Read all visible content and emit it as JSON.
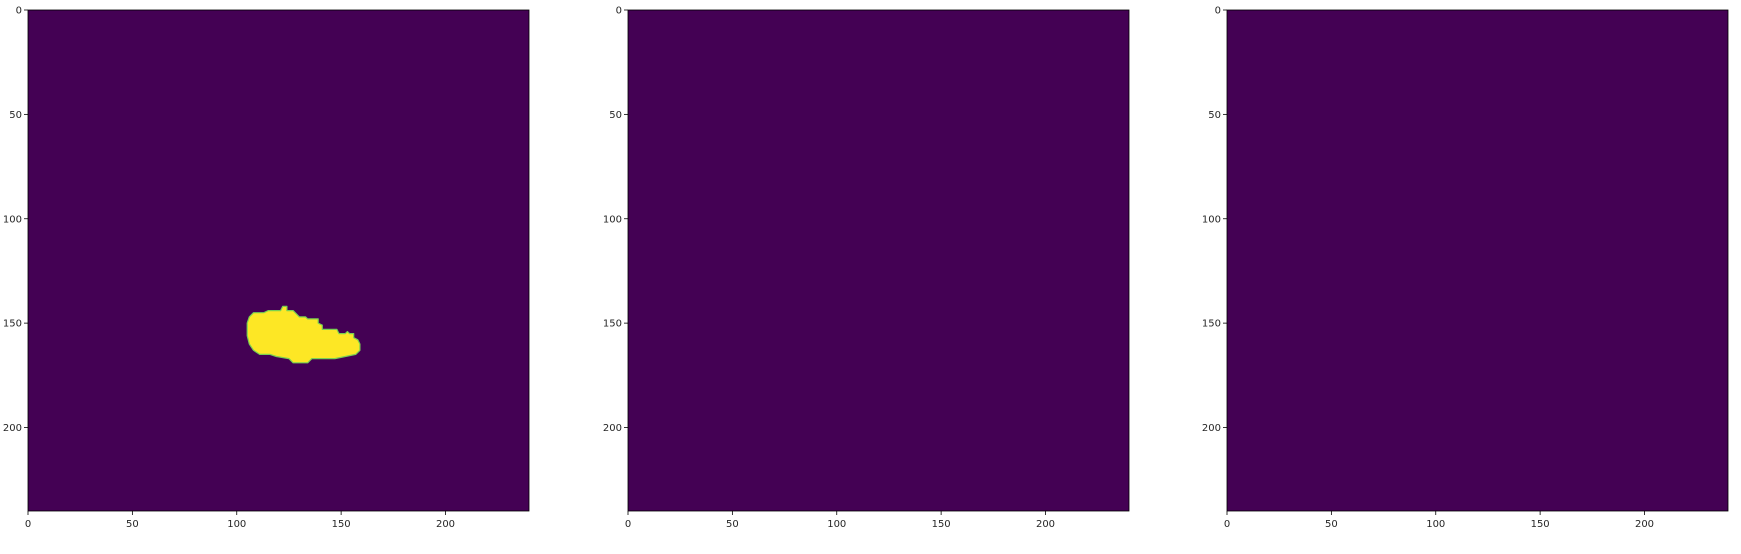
{
  "figure": {
    "background": "#ffffff",
    "colors": {
      "background_value": "#440154",
      "mask_value": "#fde725",
      "mask_edge": "#7ad151",
      "axis": "#000000",
      "text": "#262626"
    }
  },
  "chart_data": [
    {
      "type": "heatmap",
      "panel": 1,
      "image_size": [
        240,
        240
      ],
      "xlim": [
        0,
        240
      ],
      "ylim": [
        240,
        0
      ],
      "x_ticks": [
        0,
        50,
        100,
        150,
        200
      ],
      "y_ticks": [
        0,
        50,
        100,
        150,
        200
      ],
      "x_tick_labels": [
        "0",
        "50",
        "100",
        "150",
        "200"
      ],
      "y_tick_labels": [
        "0",
        "50",
        "100",
        "150",
        "200"
      ],
      "colormap": "viridis",
      "values": "binary mask (0 = background, 1 = region)",
      "mask_region_outline": [
        [
          106,
          147
        ],
        [
          108,
          145
        ],
        [
          113,
          145
        ],
        [
          115,
          144
        ],
        [
          121,
          144
        ],
        [
          122,
          142
        ],
        [
          124,
          142
        ],
        [
          124,
          144
        ],
        [
          127,
          144
        ],
        [
          130,
          147
        ],
        [
          133,
          147
        ],
        [
          134,
          148
        ],
        [
          139,
          148
        ],
        [
          139,
          150
        ],
        [
          141,
          151
        ],
        [
          141,
          153
        ],
        [
          148,
          153
        ],
        [
          149,
          155
        ],
        [
          152,
          155
        ],
        [
          153,
          154
        ],
        [
          154,
          155
        ],
        [
          156,
          155
        ],
        [
          156,
          157
        ],
        [
          158,
          158
        ],
        [
          159,
          160
        ],
        [
          159,
          163
        ],
        [
          157,
          165
        ],
        [
          152,
          166
        ],
        [
          147,
          167
        ],
        [
          136,
          167
        ],
        [
          134,
          169
        ],
        [
          127,
          169
        ],
        [
          125,
          167
        ],
        [
          119,
          166
        ],
        [
          116,
          165
        ],
        [
          111,
          165
        ],
        [
          108,
          163
        ],
        [
          106,
          160
        ],
        [
          105,
          156
        ],
        [
          105,
          150
        ]
      ]
    },
    {
      "type": "heatmap",
      "panel": 2,
      "image_size": [
        240,
        240
      ],
      "xlim": [
        0,
        240
      ],
      "ylim": [
        240,
        0
      ],
      "x_ticks": [
        0,
        50,
        100,
        150,
        200
      ],
      "y_ticks": [
        0,
        50,
        100,
        150,
        200
      ],
      "x_tick_labels": [
        "0",
        "50",
        "100",
        "150",
        "200"
      ],
      "y_tick_labels": [
        "0",
        "50",
        "100",
        "150",
        "200"
      ],
      "colormap": "viridis",
      "values": "all zeros",
      "mask_region_outline": []
    },
    {
      "type": "heatmap",
      "panel": 3,
      "image_size": [
        240,
        240
      ],
      "xlim": [
        0,
        240
      ],
      "ylim": [
        240,
        0
      ],
      "x_ticks": [
        0,
        50,
        100,
        150,
        200
      ],
      "y_ticks": [
        0,
        50,
        100,
        150,
        200
      ],
      "x_tick_labels": [
        "0",
        "50",
        "100",
        "150",
        "200"
      ],
      "y_tick_labels": [
        "0",
        "50",
        "100",
        "150",
        "200"
      ],
      "colormap": "viridis",
      "values": "all zeros",
      "mask_region_outline": []
    }
  ]
}
